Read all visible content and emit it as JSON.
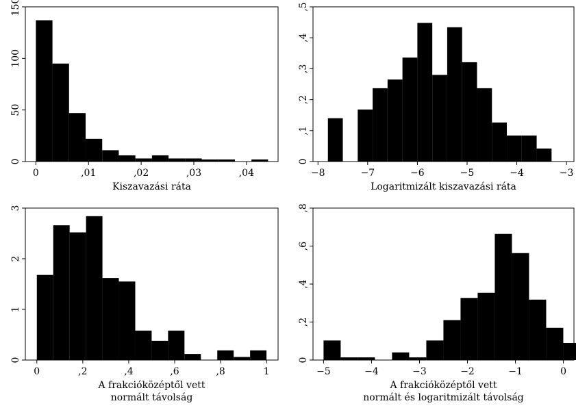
{
  "chart_data": [
    {
      "type": "bar",
      "histogram": true,
      "xlabel": [
        "Kiszavazási ráta"
      ],
      "ylabel": "",
      "xlim": [
        -0.002,
        0.046
      ],
      "ylim": [
        0,
        150
      ],
      "xticks": [
        0,
        0.01,
        0.02,
        0.03,
        0.04
      ],
      "xtick_labels": [
        "0",
        ",01",
        ",02",
        ",03",
        ",04"
      ],
      "yticks": [
        0,
        50,
        100,
        150
      ],
      "ytick_labels": [
        "0",
        "50",
        "100",
        "150"
      ],
      "bin_width": 0.00315,
      "bins": [
        {
          "x0": 0.0,
          "value": 137
        },
        {
          "x0": 0.00315,
          "value": 95
        },
        {
          "x0": 0.0063,
          "value": 47
        },
        {
          "x0": 0.00945,
          "value": 22
        },
        {
          "x0": 0.0126,
          "value": 11
        },
        {
          "x0": 0.01575,
          "value": 6
        },
        {
          "x0": 0.0189,
          "value": 3
        },
        {
          "x0": 0.02205,
          "value": 6
        },
        {
          "x0": 0.0252,
          "value": 3
        },
        {
          "x0": 0.02835,
          "value": 3
        },
        {
          "x0": 0.0315,
          "value": 2
        },
        {
          "x0": 0.03465,
          "value": 2
        },
        {
          "x0": 0.0378,
          "value": 0
        },
        {
          "x0": 0.04095,
          "value": 2
        }
      ]
    },
    {
      "type": "bar",
      "histogram": true,
      "xlabel": [
        "Logaritmizált kiszavazási ráta"
      ],
      "ylabel": "",
      "xlim": [
        -8.1,
        -2.85
      ],
      "ylim": [
        0,
        0.5
      ],
      "xticks": [
        -8,
        -7,
        -6,
        -5,
        -4,
        -3
      ],
      "xtick_labels": [
        "−8",
        "−7",
        "−6",
        "−5",
        "−4",
        "−3"
      ],
      "yticks": [
        0,
        0.1,
        0.2,
        0.3,
        0.4,
        0.5
      ],
      "ytick_labels": [
        "0",
        ",1",
        ",2",
        ",3",
        ",4",
        ",5"
      ],
      "bin_width": 0.3,
      "bins": [
        {
          "x0": -7.8,
          "value": 0.14
        },
        {
          "x0": -7.5,
          "value": 0
        },
        {
          "x0": -7.2,
          "value": 0.168
        },
        {
          "x0": -6.9,
          "value": 0.237
        },
        {
          "x0": -6.6,
          "value": 0.265
        },
        {
          "x0": -6.3,
          "value": 0.336
        },
        {
          "x0": -6.0,
          "value": 0.448
        },
        {
          "x0": -5.7,
          "value": 0.28
        },
        {
          "x0": -5.4,
          "value": 0.434
        },
        {
          "x0": -5.1,
          "value": 0.321
        },
        {
          "x0": -4.8,
          "value": 0.237
        },
        {
          "x0": -4.5,
          "value": 0.126
        },
        {
          "x0": -4.2,
          "value": 0.084
        },
        {
          "x0": -3.9,
          "value": 0.084
        },
        {
          "x0": -3.6,
          "value": 0.042
        }
      ]
    },
    {
      "type": "bar",
      "histogram": true,
      "xlabel": [
        "A frakcióközéptől vett",
        "normált távolság"
      ],
      "ylabel": "",
      "xlim": [
        -0.05,
        1.05
      ],
      "ylim": [
        0,
        3
      ],
      "xticks": [
        0,
        0.2,
        0.4,
        0.6,
        0.8,
        1
      ],
      "xtick_labels": [
        "0",
        ",2",
        ",4",
        ",6",
        ",8",
        "1"
      ],
      "yticks": [
        0,
        1,
        2,
        3
      ],
      "ytick_labels": [
        "0",
        "1",
        "2",
        "3"
      ],
      "bin_width": 0.0714,
      "bins": [
        {
          "x0": 0.0,
          "value": 1.68
        },
        {
          "x0": 0.0714,
          "value": 2.66
        },
        {
          "x0": 0.1428,
          "value": 2.52
        },
        {
          "x0": 0.2142,
          "value": 2.84
        },
        {
          "x0": 0.2856,
          "value": 1.62
        },
        {
          "x0": 0.357,
          "value": 1.55
        },
        {
          "x0": 0.4284,
          "value": 0.58
        },
        {
          "x0": 0.4998,
          "value": 0.38
        },
        {
          "x0": 0.5712,
          "value": 0.58
        },
        {
          "x0": 0.6426,
          "value": 0.12
        },
        {
          "x0": 0.714,
          "value": 0
        },
        {
          "x0": 0.7854,
          "value": 0.19
        },
        {
          "x0": 0.8568,
          "value": 0.06
        },
        {
          "x0": 0.9282,
          "value": 0.19
        }
      ]
    },
    {
      "type": "bar",
      "histogram": true,
      "xlabel": [
        "A frakcióközéptől vett",
        "normált és logaritmizált távolság"
      ],
      "ylabel": "",
      "xlim": [
        -5.22,
        0.22
      ],
      "ylim": [
        0,
        0.8
      ],
      "xticks": [
        -5,
        -4,
        -3,
        -2,
        -1,
        0
      ],
      "xtick_labels": [
        "−5",
        "−4",
        "−3",
        "−2",
        "−1",
        "0"
      ],
      "yticks": [
        0,
        0.2,
        0.4,
        0.6,
        0.8
      ],
      "ytick_labels": [
        "0",
        ",2",
        ",4",
        ",6",
        ",8"
      ],
      "bin_width": 0.357,
      "bins": [
        {
          "x0": -5.0,
          "value": 0.103
        },
        {
          "x0": -4.643,
          "value": 0.014
        },
        {
          "x0": -4.286,
          "value": 0.014
        },
        {
          "x0": -3.929,
          "value": 0
        },
        {
          "x0": -3.572,
          "value": 0.04
        },
        {
          "x0": -3.215,
          "value": 0.014
        },
        {
          "x0": -2.858,
          "value": 0.103
        },
        {
          "x0": -2.501,
          "value": 0.21
        },
        {
          "x0": -2.144,
          "value": 0.327
        },
        {
          "x0": -1.787,
          "value": 0.354
        },
        {
          "x0": -1.43,
          "value": 0.664
        },
        {
          "x0": -1.073,
          "value": 0.563
        },
        {
          "x0": -0.716,
          "value": 0.318
        },
        {
          "x0": -0.359,
          "value": 0.17
        },
        {
          "x0": -0.002,
          "value": 0.09
        }
      ]
    }
  ]
}
